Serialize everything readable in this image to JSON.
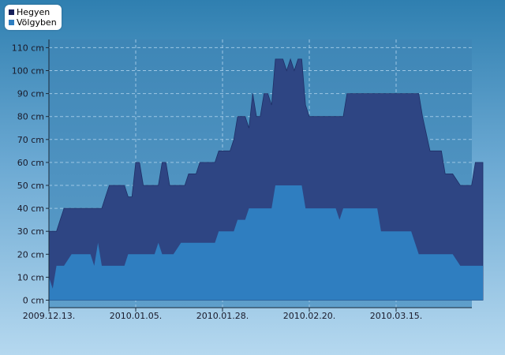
{
  "chart_data": {
    "type": "area",
    "y_unit": "cm",
    "ylim": [
      -5,
      113
    ],
    "yticks": [
      0,
      10,
      20,
      30,
      40,
      50,
      60,
      70,
      80,
      90,
      100,
      110
    ],
    "ytick_labels": [
      "0 cm",
      "10 cm",
      "20 cm",
      "30 cm",
      "40 cm",
      "50 cm",
      "60 cm",
      "70 cm",
      "80 cm",
      "90 cm",
      "100 cm",
      "110 cm"
    ],
    "xlim": [
      "2009-12-13",
      "2010-04-18"
    ],
    "xticks": [
      "2009-12-13",
      "2010-01-05",
      "2010-01-28",
      "2010-02-20",
      "2010-03-15"
    ],
    "xtick_labels": [
      "2009.12.13.",
      "2010.01.05.",
      "2010.01.28.",
      "2010.02.20.",
      "2010.03.15."
    ],
    "grid": true,
    "legend_position": "top-left",
    "series": [
      {
        "name": "Hegyen",
        "color": "#2e4583",
        "points": [
          [
            "2009-12-13",
            30
          ],
          [
            "2009-12-15",
            30
          ],
          [
            "2009-12-16",
            35
          ],
          [
            "2009-12-17",
            40
          ],
          [
            "2009-12-19",
            40
          ],
          [
            "2009-12-21",
            40
          ],
          [
            "2009-12-24",
            40
          ],
          [
            "2009-12-27",
            40
          ],
          [
            "2009-12-28",
            45
          ],
          [
            "2009-12-29",
            50
          ],
          [
            "2010-01-01",
            50
          ],
          [
            "2010-01-02",
            50
          ],
          [
            "2010-01-03",
            45
          ],
          [
            "2010-01-04",
            45
          ],
          [
            "2010-01-05",
            60
          ],
          [
            "2010-01-06",
            60
          ],
          [
            "2010-01-07",
            50
          ],
          [
            "2010-01-11",
            50
          ],
          [
            "2010-01-12",
            60
          ],
          [
            "2010-01-13",
            60
          ],
          [
            "2010-01-14",
            50
          ],
          [
            "2010-01-18",
            50
          ],
          [
            "2010-01-19",
            55
          ],
          [
            "2010-01-21",
            55
          ],
          [
            "2010-01-22",
            60
          ],
          [
            "2010-01-26",
            60
          ],
          [
            "2010-01-27",
            65
          ],
          [
            "2010-01-30",
            65
          ],
          [
            "2010-01-31",
            70
          ],
          [
            "2010-02-01",
            80
          ],
          [
            "2010-02-03",
            80
          ],
          [
            "2010-02-04",
            75
          ],
          [
            "2010-02-05",
            90
          ],
          [
            "2010-02-06",
            80
          ],
          [
            "2010-02-07",
            80
          ],
          [
            "2010-02-08",
            90
          ],
          [
            "2010-02-09",
            90
          ],
          [
            "2010-02-10",
            85
          ],
          [
            "2010-02-11",
            105
          ],
          [
            "2010-02-13",
            105
          ],
          [
            "2010-02-14",
            100
          ],
          [
            "2010-02-15",
            105
          ],
          [
            "2010-02-16",
            100
          ],
          [
            "2010-02-17",
            105
          ],
          [
            "2010-02-18",
            105
          ],
          [
            "2010-02-19",
            85
          ],
          [
            "2010-02-20",
            80
          ],
          [
            "2010-02-21",
            80
          ],
          [
            "2010-03-01",
            80
          ],
          [
            "2010-03-02",
            90
          ],
          [
            "2010-03-07",
            90
          ],
          [
            "2010-03-12",
            90
          ],
          [
            "2010-03-17",
            90
          ],
          [
            "2010-03-21",
            90
          ],
          [
            "2010-03-22",
            80
          ],
          [
            "2010-03-24",
            65
          ],
          [
            "2010-03-27",
            65
          ],
          [
            "2010-03-28",
            55
          ],
          [
            "2010-03-30",
            55
          ],
          [
            "2010-04-01",
            50
          ],
          [
            "2010-04-04",
            50
          ],
          [
            "2010-04-05",
            60
          ],
          [
            "2010-04-07",
            60
          ]
        ]
      },
      {
        "name": "Völgyben",
        "color": "#2f7ec0",
        "points": [
          [
            "2009-12-13",
            10
          ],
          [
            "2009-12-14",
            5
          ],
          [
            "2009-12-15",
            15
          ],
          [
            "2009-12-17",
            15
          ],
          [
            "2009-12-19",
            20
          ],
          [
            "2009-12-24",
            20
          ],
          [
            "2009-12-25",
            15
          ],
          [
            "2009-12-26",
            25
          ],
          [
            "2009-12-27",
            15
          ],
          [
            "2010-01-02",
            15
          ],
          [
            "2010-01-03",
            20
          ],
          [
            "2010-01-09",
            20
          ],
          [
            "2010-01-10",
            20
          ],
          [
            "2010-01-11",
            25
          ],
          [
            "2010-01-12",
            20
          ],
          [
            "2010-01-15",
            20
          ],
          [
            "2010-01-17",
            25
          ],
          [
            "2010-01-26",
            25
          ],
          [
            "2010-01-27",
            30
          ],
          [
            "2010-01-31",
            30
          ],
          [
            "2010-02-01",
            35
          ],
          [
            "2010-02-03",
            35
          ],
          [
            "2010-02-04",
            40
          ],
          [
            "2010-02-10",
            40
          ],
          [
            "2010-02-11",
            50
          ],
          [
            "2010-02-18",
            50
          ],
          [
            "2010-02-19",
            40
          ],
          [
            "2010-02-27",
            40
          ],
          [
            "2010-02-28",
            35
          ],
          [
            "2010-03-01",
            40
          ],
          [
            "2010-03-10",
            40
          ],
          [
            "2010-03-11",
            30
          ],
          [
            "2010-03-19",
            30
          ],
          [
            "2010-03-20",
            25
          ],
          [
            "2010-03-21",
            20
          ],
          [
            "2010-03-30",
            20
          ],
          [
            "2010-04-01",
            15
          ],
          [
            "2010-04-07",
            15
          ]
        ]
      }
    ]
  }
}
